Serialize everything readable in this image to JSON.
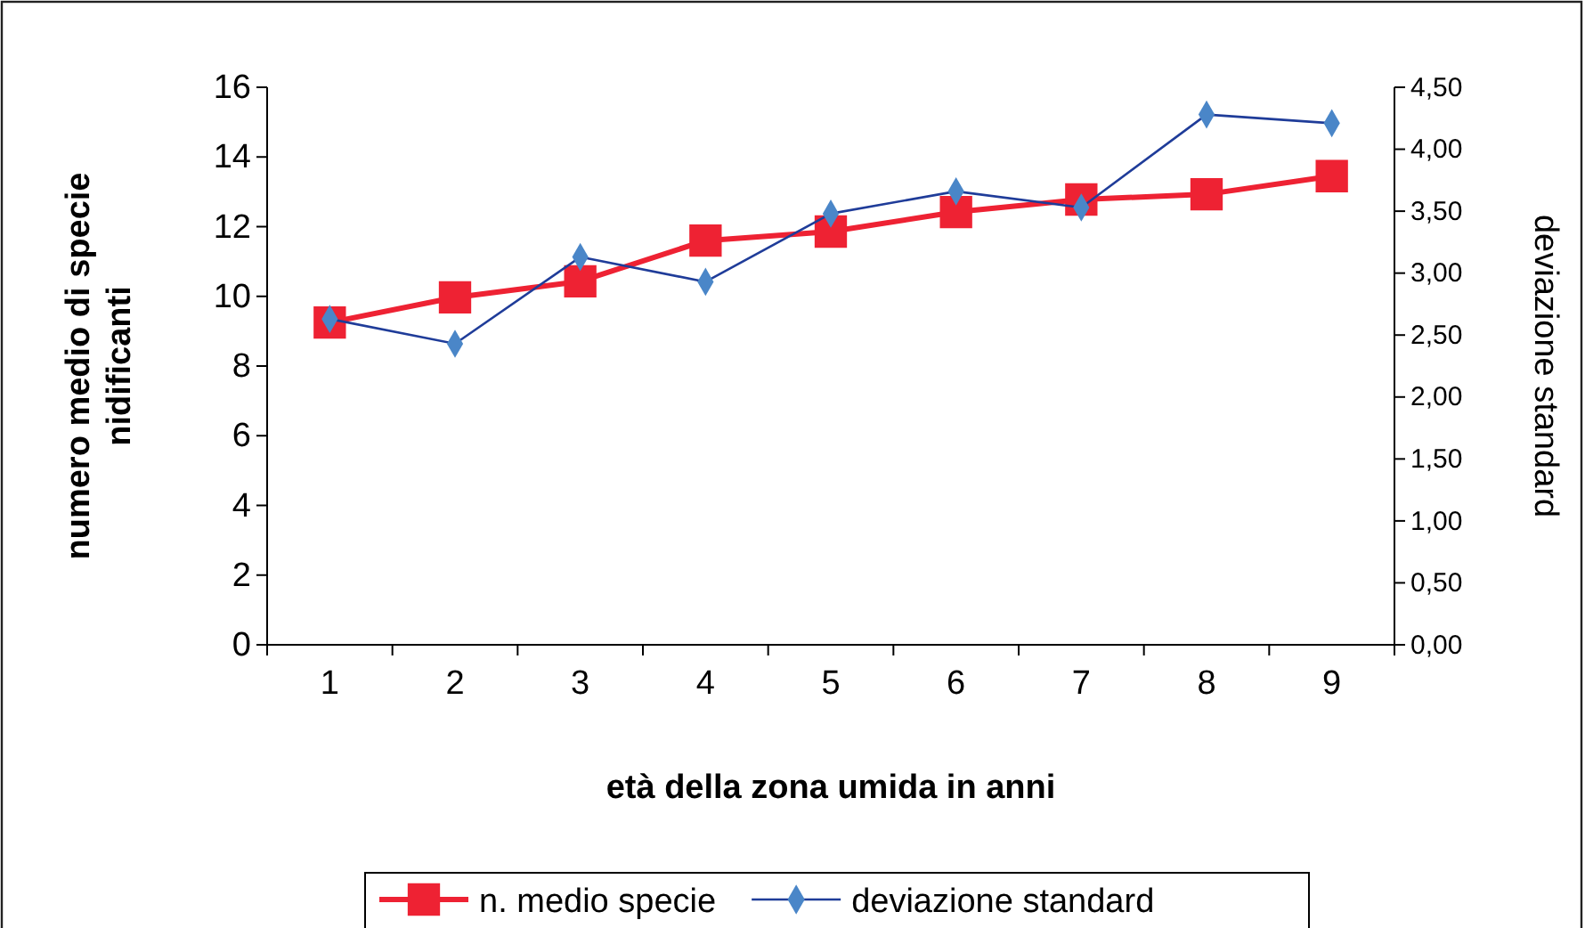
{
  "chart_data": {
    "type": "line",
    "xlabel": "età della zona umida in anni",
    "ylabel": "numero medio di specie nidificanti",
    "y2label": "deviazione standard",
    "categories": [
      "1",
      "2",
      "3",
      "4",
      "5",
      "6",
      "7",
      "8",
      "9"
    ],
    "series": [
      {
        "name": "n. medio specie",
        "color": "#ee2233",
        "marker": "square",
        "values": [
          9.25,
          9.97,
          10.43,
          11.6,
          11.86,
          12.42,
          12.78,
          12.93,
          13.45
        ]
      },
      {
        "name": "deviazione standard",
        "color": "#1f3c99",
        "marker": "diamond",
        "axis": "y2",
        "values": [
          2.63,
          2.43,
          3.13,
          2.93,
          3.48,
          3.66,
          3.53,
          4.28,
          4.21
        ]
      }
    ],
    "ylim": [
      0,
      16
    ],
    "yticks": [
      0,
      2,
      4,
      6,
      8,
      10,
      12,
      14,
      16
    ],
    "y2lim": [
      0,
      4.5
    ],
    "y2ticks": [
      {
        "value": 0,
        "label": "0,00"
      },
      {
        "value": 0.5,
        "label": "0,50"
      },
      {
        "value": 1,
        "label": "1,00"
      },
      {
        "value": 1.5,
        "label": "1,50"
      },
      {
        "value": 2,
        "label": "2,00"
      },
      {
        "value": 2.5,
        "label": "2,50"
      },
      {
        "value": 3,
        "label": "3,00"
      },
      {
        "value": 3.5,
        "label": "3,50"
      },
      {
        "value": 4,
        "label": "4,00"
      },
      {
        "value": 4.5,
        "label": "4,50"
      }
    ],
    "grid": false,
    "legend": "bottom"
  }
}
